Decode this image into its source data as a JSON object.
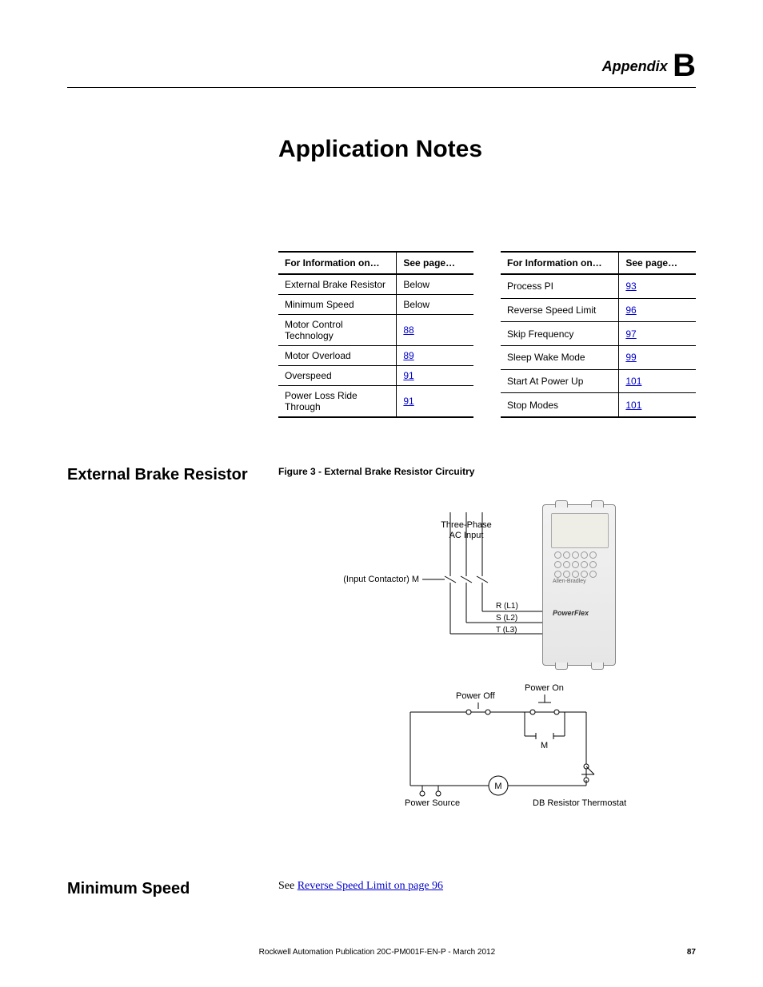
{
  "appendix": {
    "word": "Appendix",
    "letter": "B"
  },
  "chapter_title": "Application Notes",
  "tables": {
    "header_left": "For Information on…",
    "header_right": "See page…",
    "left": [
      {
        "topic": "External Brake Resistor",
        "page": "Below",
        "is_link": false
      },
      {
        "topic": "Minimum Speed",
        "page": "Below",
        "is_link": false
      },
      {
        "topic": "Motor Control Technology",
        "page": "88",
        "is_link": true
      },
      {
        "topic": "Motor Overload",
        "page": "89",
        "is_link": true
      },
      {
        "topic": "Overspeed",
        "page": "91",
        "is_link": true
      },
      {
        "topic": "Power Loss Ride Through",
        "page": "91",
        "is_link": true
      }
    ],
    "right": [
      {
        "topic": "Process PI",
        "page": "93",
        "is_link": true
      },
      {
        "topic": "Reverse Speed Limit",
        "page": "96",
        "is_link": true
      },
      {
        "topic": "Skip Frequency",
        "page": "97",
        "is_link": true
      },
      {
        "topic": "Sleep Wake Mode",
        "page": "99",
        "is_link": true
      },
      {
        "topic": "Start At Power Up",
        "page": "101",
        "is_link": true
      },
      {
        "topic": "Stop Modes",
        "page": "101",
        "is_link": true
      }
    ]
  },
  "section1": {
    "heading": "External Brake Resistor",
    "fig_caption": "Figure 3 - External Brake Resistor Circuitry"
  },
  "diagram": {
    "three_phase": "Three-Phase\nAC Input",
    "contactor": "(Input Contactor) M",
    "r": "R (L1)",
    "s": "S (L2)",
    "t": "T (L3)",
    "power_off": "Power Off",
    "power_on": "Power On",
    "m1": "M",
    "m2": "M",
    "power_source": "Power Source",
    "db_thermostat": "DB Resistor Thermostat",
    "drive_brand": "Allen-Bradley",
    "drive_model": "PowerFlex"
  },
  "section2": {
    "heading": "Minimum Speed",
    "body_prefix": "See ",
    "body_link": "Reverse Speed Limit on page 96"
  },
  "footer": {
    "publication": "Rockwell Automation Publication 20C-PM001F-EN-P - March 2012",
    "page_number": "87"
  }
}
